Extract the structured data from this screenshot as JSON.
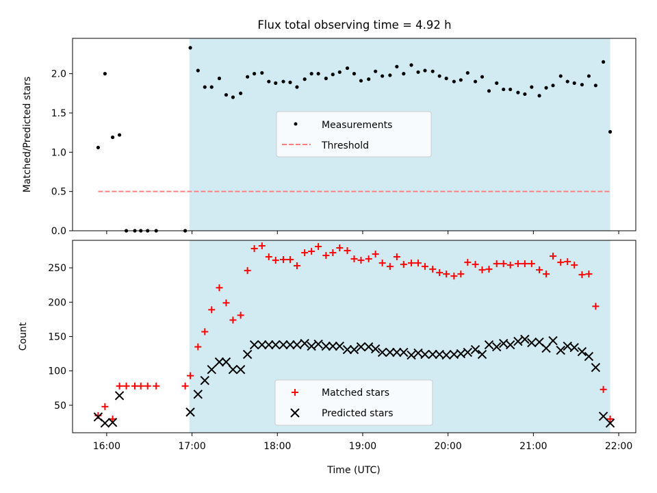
{
  "chart_data": [
    {
      "type": "scatter",
      "panel": "top",
      "title": "Flux total observing time = 4.92 h",
      "ylabel": "Matched/Predicted stars",
      "xlabel": "",
      "xlim_hours": [
        15.6,
        22.2
      ],
      "ylim": [
        0,
        2.45
      ],
      "yticks": [
        "0.0",
        "0.5",
        "1.0",
        "1.5",
        "2.0"
      ],
      "shaded_region_hours": [
        16.97,
        21.9
      ],
      "shade_color": "#add8e6",
      "legend_position": "center",
      "series": [
        {
          "name": "Measurements",
          "marker": "dot",
          "color": "#000000",
          "x_hours": [
            15.9,
            15.98,
            16.07,
            16.15,
            16.23,
            16.33,
            16.4,
            16.48,
            16.58,
            16.92,
            16.98,
            17.07,
            17.15,
            17.23,
            17.32,
            17.4,
            17.48,
            17.57,
            17.65,
            17.73,
            17.82,
            17.9,
            17.98,
            18.07,
            18.15,
            18.23,
            18.32,
            18.4,
            18.48,
            18.57,
            18.65,
            18.73,
            18.82,
            18.9,
            18.98,
            19.07,
            19.15,
            19.23,
            19.32,
            19.4,
            19.48,
            19.57,
            19.65,
            19.73,
            19.82,
            19.9,
            19.98,
            20.07,
            20.15,
            20.23,
            20.32,
            20.4,
            20.48,
            20.57,
            20.65,
            20.73,
            20.82,
            20.9,
            20.98,
            21.07,
            21.15,
            21.23,
            21.32,
            21.4,
            21.48,
            21.57,
            21.65,
            21.73,
            21.82,
            21.9
          ],
          "y": [
            1.06,
            2.0,
            1.19,
            1.22,
            0.0,
            0.0,
            0.0,
            0.0,
            0.0,
            0.0,
            2.33,
            2.04,
            1.83,
            1.83,
            1.94,
            1.73,
            1.7,
            1.75,
            1.96,
            2.0,
            2.01,
            1.9,
            1.88,
            1.9,
            1.89,
            1.83,
            1.93,
            2.0,
            2.0,
            1.94,
            1.99,
            2.02,
            2.07,
            2.0,
            1.91,
            1.93,
            2.03,
            1.97,
            1.98,
            2.09,
            2.0,
            2.11,
            2.02,
            2.04,
            2.03,
            1.97,
            1.94,
            1.9,
            1.92,
            2.01,
            1.9,
            1.96,
            1.78,
            1.88,
            1.8,
            1.8,
            1.76,
            1.74,
            1.83,
            1.72,
            1.82,
            1.85,
            1.97,
            1.9,
            1.88,
            1.86,
            1.97,
            1.85,
            2.15,
            1.26
          ]
        },
        {
          "name": "Threshold",
          "marker": "dashed-line",
          "color": "#ff7f7f",
          "x_hours": [
            15.9,
            21.9
          ],
          "y": [
            0.5,
            0.5
          ]
        }
      ]
    },
    {
      "type": "scatter",
      "panel": "bottom",
      "title": "",
      "ylabel": "Count",
      "xlabel": "Time (UTC)",
      "xlim_hours": [
        15.6,
        22.2
      ],
      "ylim": [
        10,
        290
      ],
      "yticks": [
        "50",
        "100",
        "150",
        "200",
        "250"
      ],
      "xticks_hours": [
        16,
        17,
        18,
        19,
        20,
        21,
        22
      ],
      "xtick_labels": [
        "16:00",
        "17:00",
        "18:00",
        "19:00",
        "20:00",
        "21:00",
        "22:00"
      ],
      "shaded_region_hours": [
        16.97,
        21.9
      ],
      "shade_color": "#add8e6",
      "legend_position": "lower center",
      "series": [
        {
          "name": "Matched stars",
          "marker": "plus",
          "color": "#ff0000",
          "x_hours": [
            15.9,
            15.98,
            16.07,
            16.15,
            16.23,
            16.33,
            16.4,
            16.48,
            16.58,
            16.92,
            16.98,
            17.07,
            17.15,
            17.23,
            17.32,
            17.4,
            17.48,
            17.57,
            17.65,
            17.73,
            17.82,
            17.9,
            17.98,
            18.07,
            18.15,
            18.23,
            18.32,
            18.4,
            18.48,
            18.57,
            18.65,
            18.73,
            18.82,
            18.9,
            18.98,
            19.07,
            19.15,
            19.23,
            19.32,
            19.4,
            19.48,
            19.57,
            19.65,
            19.73,
            19.82,
            19.9,
            19.98,
            20.07,
            20.15,
            20.23,
            20.32,
            20.4,
            20.48,
            20.57,
            20.65,
            20.73,
            20.82,
            20.9,
            20.98,
            21.07,
            21.15,
            21.23,
            21.32,
            21.4,
            21.48,
            21.57,
            21.65,
            21.73,
            21.82,
            21.9
          ],
          "y": [
            35,
            48,
            30,
            78,
            78,
            78,
            78,
            78,
            78,
            78,
            93,
            135,
            157,
            189,
            221,
            199,
            174,
            181,
            246,
            278,
            282,
            266,
            261,
            262,
            262,
            253,
            272,
            274,
            281,
            268,
            272,
            279,
            275,
            263,
            261,
            263,
            270,
            257,
            252,
            266,
            255,
            257,
            257,
            252,
            248,
            243,
            241,
            238,
            241,
            258,
            255,
            247,
            248,
            256,
            256,
            254,
            256,
            256,
            256,
            247,
            241,
            267,
            258,
            259,
            254,
            240,
            241,
            194,
            73,
            30
          ]
        },
        {
          "name": "Predicted stars",
          "marker": "x",
          "color": "#000000",
          "x_hours": [
            15.9,
            15.98,
            16.07,
            16.15,
            16.98,
            17.07,
            17.15,
            17.23,
            17.32,
            17.4,
            17.48,
            17.57,
            17.65,
            17.73,
            17.82,
            17.9,
            17.98,
            18.07,
            18.15,
            18.23,
            18.32,
            18.4,
            18.48,
            18.57,
            18.65,
            18.73,
            18.82,
            18.9,
            18.98,
            19.07,
            19.15,
            19.23,
            19.32,
            19.4,
            19.48,
            19.57,
            19.65,
            19.73,
            19.82,
            19.9,
            19.98,
            20.07,
            20.15,
            20.23,
            20.32,
            20.4,
            20.48,
            20.57,
            20.65,
            20.73,
            20.82,
            20.9,
            20.98,
            21.07,
            21.15,
            21.23,
            21.32,
            21.4,
            21.48,
            21.57,
            21.65,
            21.73,
            21.82,
            21.9
          ],
          "y": [
            33,
            24,
            25,
            64,
            40,
            66,
            86,
            102,
            113,
            113,
            102,
            102,
            124,
            138,
            138,
            138,
            138,
            138,
            138,
            138,
            140,
            136,
            139,
            136,
            136,
            136,
            131,
            131,
            135,
            135,
            132,
            127,
            127,
            127,
            127,
            123,
            126,
            124,
            124,
            124,
            123,
            124,
            125,
            127,
            131,
            124,
            138,
            135,
            140,
            138,
            143,
            146,
            141,
            142,
            133,
            144,
            130,
            136,
            134,
            128,
            121,
            105,
            34,
            24
          ]
        }
      ]
    }
  ]
}
